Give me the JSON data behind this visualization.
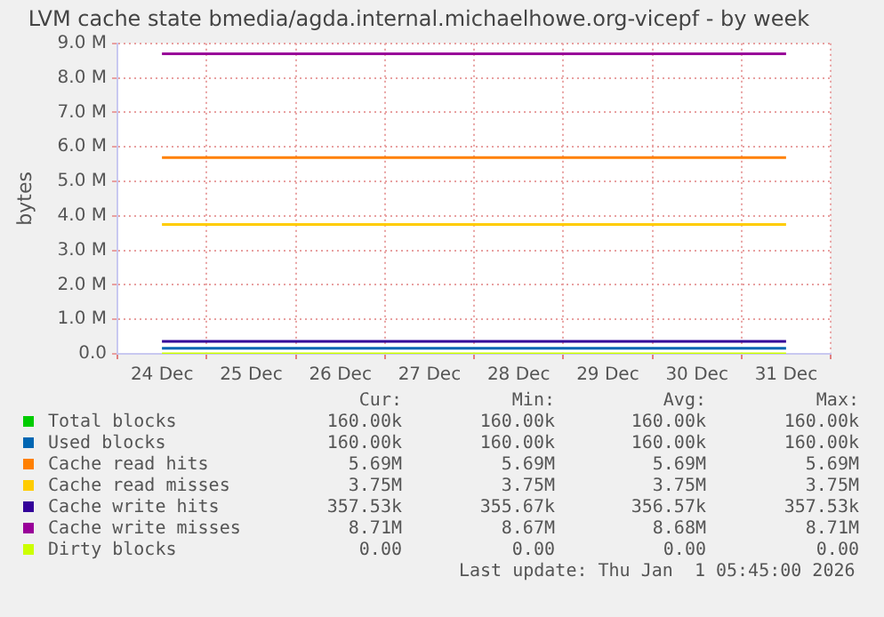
{
  "chart_data": {
    "type": "line",
    "title": "LVM cache state bmedia/agda.internal.michaelhowe.org-vicepf - by week",
    "ylabel": "bytes",
    "categories": [
      "24 Dec",
      "25 Dec",
      "26 Dec",
      "27 Dec",
      "28 Dec",
      "29 Dec",
      "30 Dec",
      "31 Dec"
    ],
    "series": [
      {
        "name": "Total blocks",
        "color": "#00cc00",
        "values": [
          null,
          null,
          null,
          null,
          null,
          null,
          null,
          null
        ]
      },
      {
        "name": "Used blocks",
        "color": "#0066b3",
        "values": [
          160000,
          160000,
          160000,
          160000,
          160000,
          160000,
          160000,
          160000
        ]
      },
      {
        "name": "Cache read hits",
        "color": "#ff8000",
        "values": [
          5690000,
          5690000,
          5690000,
          5690000,
          5690000,
          5690000,
          5690000,
          5690000
        ]
      },
      {
        "name": "Cache read misses",
        "color": "#ffcc00",
        "values": [
          3750000,
          3750000,
          3750000,
          3750000,
          3750000,
          3750000,
          3750000,
          3750000
        ]
      },
      {
        "name": "Cache write hits",
        "color": "#330099",
        "values": [
          360000,
          360000,
          360000,
          360000,
          360000,
          360000,
          360000,
          360000
        ]
      },
      {
        "name": "Cache write misses",
        "color": "#990099",
        "values": [
          8700000,
          8700000,
          8700000,
          8700000,
          8700000,
          8700000,
          8700000,
          8700000
        ]
      },
      {
        "name": "Dirty blocks",
        "color": "#ccff00",
        "values": [
          0,
          0,
          0,
          0,
          0,
          0,
          0,
          0
        ]
      }
    ],
    "ylim": [
      0,
      9000000
    ],
    "yticks": [
      {
        "value": 0,
        "label": "0.0"
      },
      {
        "value": 1000000,
        "label": "1.0 M"
      },
      {
        "value": 2000000,
        "label": "2.0 M"
      },
      {
        "value": 3000000,
        "label": "3.0 M"
      },
      {
        "value": 4000000,
        "label": "4.0 M"
      },
      {
        "value": 5000000,
        "label": "5.0 M"
      },
      {
        "value": 6000000,
        "label": "6.0 M"
      },
      {
        "value": 7000000,
        "label": "7.0 M"
      },
      {
        "value": 8000000,
        "label": "8.0 M"
      },
      {
        "value": 9000000,
        "label": "9.0 M"
      }
    ],
    "grid": true,
    "legend": "bottom",
    "marker": "none",
    "annotations": [
      "Cur:",
      "Min:",
      "Avg:",
      "Max:",
      "160.00k",
      "160.00k",
      "160.00k",
      "160.00k",
      "160.00k",
      "160.00k",
      "160.00k",
      "160.00k",
      "5.69M",
      "5.69M",
      "5.69M",
      "5.69M",
      "3.75M",
      "3.75M",
      "3.75M",
      "3.75M",
      "357.53k",
      "355.67k",
      "356.57k",
      "357.53k",
      "8.71M",
      "8.67M",
      "8.68M",
      "8.71M",
      "0.00",
      "0.00",
      "0.00",
      "0.00",
      "Last update: Thu Jan  1 05:45:00 2026"
    ]
  }
}
